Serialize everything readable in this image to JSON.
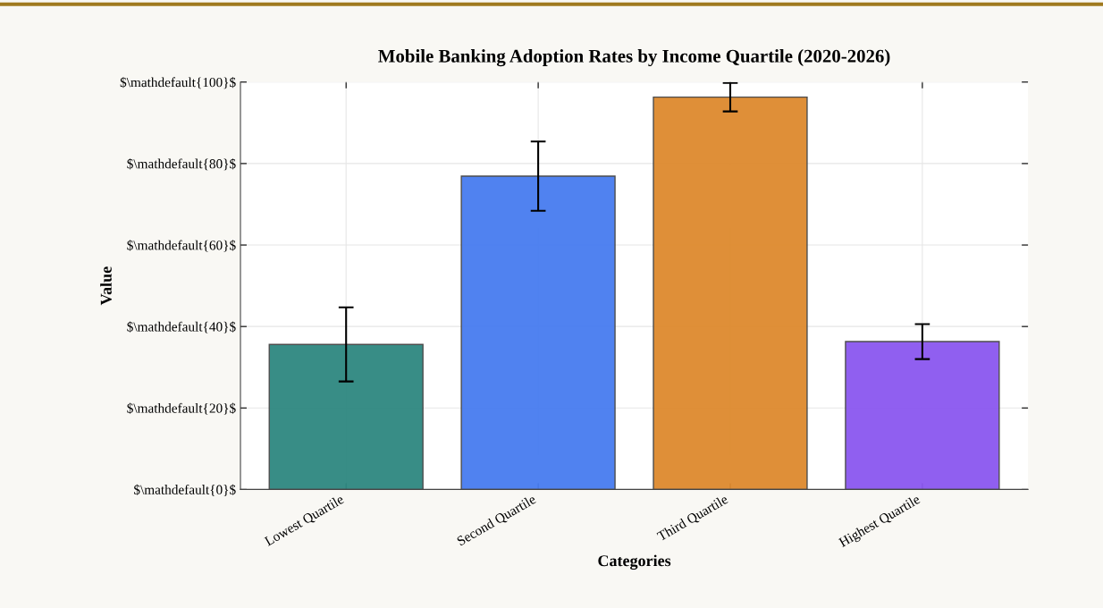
{
  "chart_data": {
    "type": "bar",
    "title": "Mobile Banking Adoption Rates by Income Quartile (2020-2026)",
    "xlabel": "Categories",
    "ylabel": "Value",
    "categories": [
      "Lowest Quartile",
      "Second Quartile",
      "Third Quartile",
      "Highest Quartile"
    ],
    "values": [
      35.6,
      76.9,
      96.3,
      36.3
    ],
    "errors": [
      9.1,
      8.5,
      3.5,
      4.3
    ],
    "colors": [
      "#2e8780",
      "#477cf0",
      "#de8a2e",
      "#8b57f0"
    ],
    "ylim": [
      0,
      100
    ],
    "yticks": [
      {
        "value": 0,
        "label": "$\\mathdefault{0}$"
      },
      {
        "value": 20,
        "label": "$\\mathdefault{20}$"
      },
      {
        "value": 40,
        "label": "$\\mathdefault{40}$"
      },
      {
        "value": 60,
        "label": "$\\mathdefault{60}$"
      },
      {
        "value": 80,
        "label": "$\\mathdefault{80}$"
      },
      {
        "value": 100,
        "label": "$\\mathdefault{100}$"
      }
    ],
    "grid": true
  }
}
